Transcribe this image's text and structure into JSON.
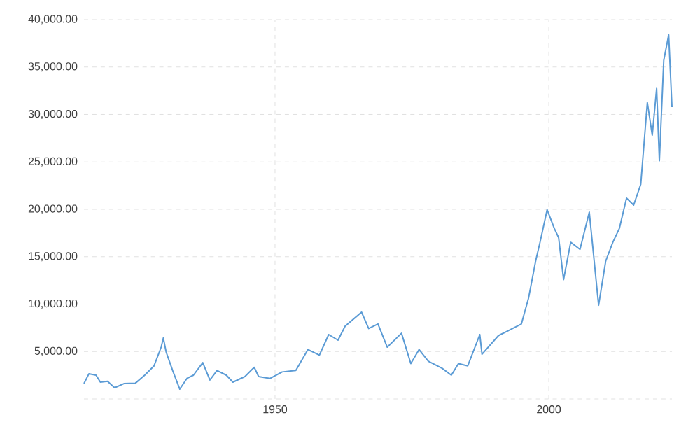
{
  "chart_data": {
    "type": "line",
    "color": "#5b9bd5",
    "grid": true,
    "marker": "none",
    "line_style": "solid",
    "xlim": [
      1915.1,
      2022.5
    ],
    "xticks": [
      1950,
      2000
    ],
    "ylim": [
      0,
      40000
    ],
    "yticks": [
      {
        "value": 0,
        "label": null
      },
      {
        "value": 5000,
        "label": "5,000.00"
      },
      {
        "value": 10000,
        "label": "10,000.00"
      },
      {
        "value": 15000,
        "label": "15,000.00"
      },
      {
        "value": 20000,
        "label": "20,000.00"
      },
      {
        "value": 25000,
        "label": "25,000.00"
      },
      {
        "value": 30000,
        "label": "30,000.00"
      },
      {
        "value": 35000,
        "label": "35,000.00"
      },
      {
        "value": 40000,
        "label": "40,000.00"
      }
    ],
    "x": [
      1915.1,
      1916.0,
      1917.3,
      1918.1,
      1919.4,
      1920.7,
      1922.4,
      1924.5,
      1926.2,
      1927.9,
      1929.2,
      1929.6,
      1930.1,
      1931.3,
      1932.6,
      1933.9,
      1935.1,
      1936.8,
      1938.1,
      1939.4,
      1941.1,
      1942.3,
      1944.5,
      1946.2,
      1947.0,
      1949.1,
      1951.3,
      1953.8,
      1956.0,
      1958.1,
      1959.8,
      1961.5,
      1962.8,
      1965.8,
      1967.1,
      1968.8,
      1970.5,
      1973.1,
      1974.8,
      1976.3,
      1978.0,
      1980.5,
      1982.2,
      1983.5,
      1985.2,
      1987.4,
      1987.8,
      1990.8,
      1992.5,
      1995.0,
      1996.3,
      1997.6,
      1998.4,
      1999.7,
      2001.0,
      2001.8,
      2002.7,
      2004.0,
      2005.7,
      2007.4,
      2009.1,
      2010.4,
      2011.7,
      2012.9,
      2014.2,
      2015.5,
      2016.8,
      2018.0,
      2018.9,
      2019.7,
      2020.2,
      2021.0,
      2021.9,
      2022.5
    ],
    "values": [
      1620,
      2650,
      2510,
      1770,
      1860,
      1180,
      1620,
      1670,
      2510,
      3490,
      5460,
      6430,
      4960,
      3000,
      1030,
      2160,
      2510,
      3830,
      2000,
      3000,
      2510,
      1770,
      2360,
      3340,
      2360,
      2160,
      2850,
      3000,
      5210,
      4620,
      6790,
      6200,
      7670,
      9150,
      7420,
      7910,
      5460,
      6930,
      3730,
      5210,
      3980,
      3240,
      2510,
      3730,
      3490,
      6790,
      4720,
      6680,
      7170,
      7910,
      10620,
      14540,
      16520,
      19960,
      18000,
      17010,
      12580,
      16520,
      15780,
      19700,
      9880,
      14540,
      16520,
      18000,
      21180,
      20440,
      22650,
      31270,
      27820,
      32740,
      25120,
      35700,
      38390,
      30770
    ]
  }
}
